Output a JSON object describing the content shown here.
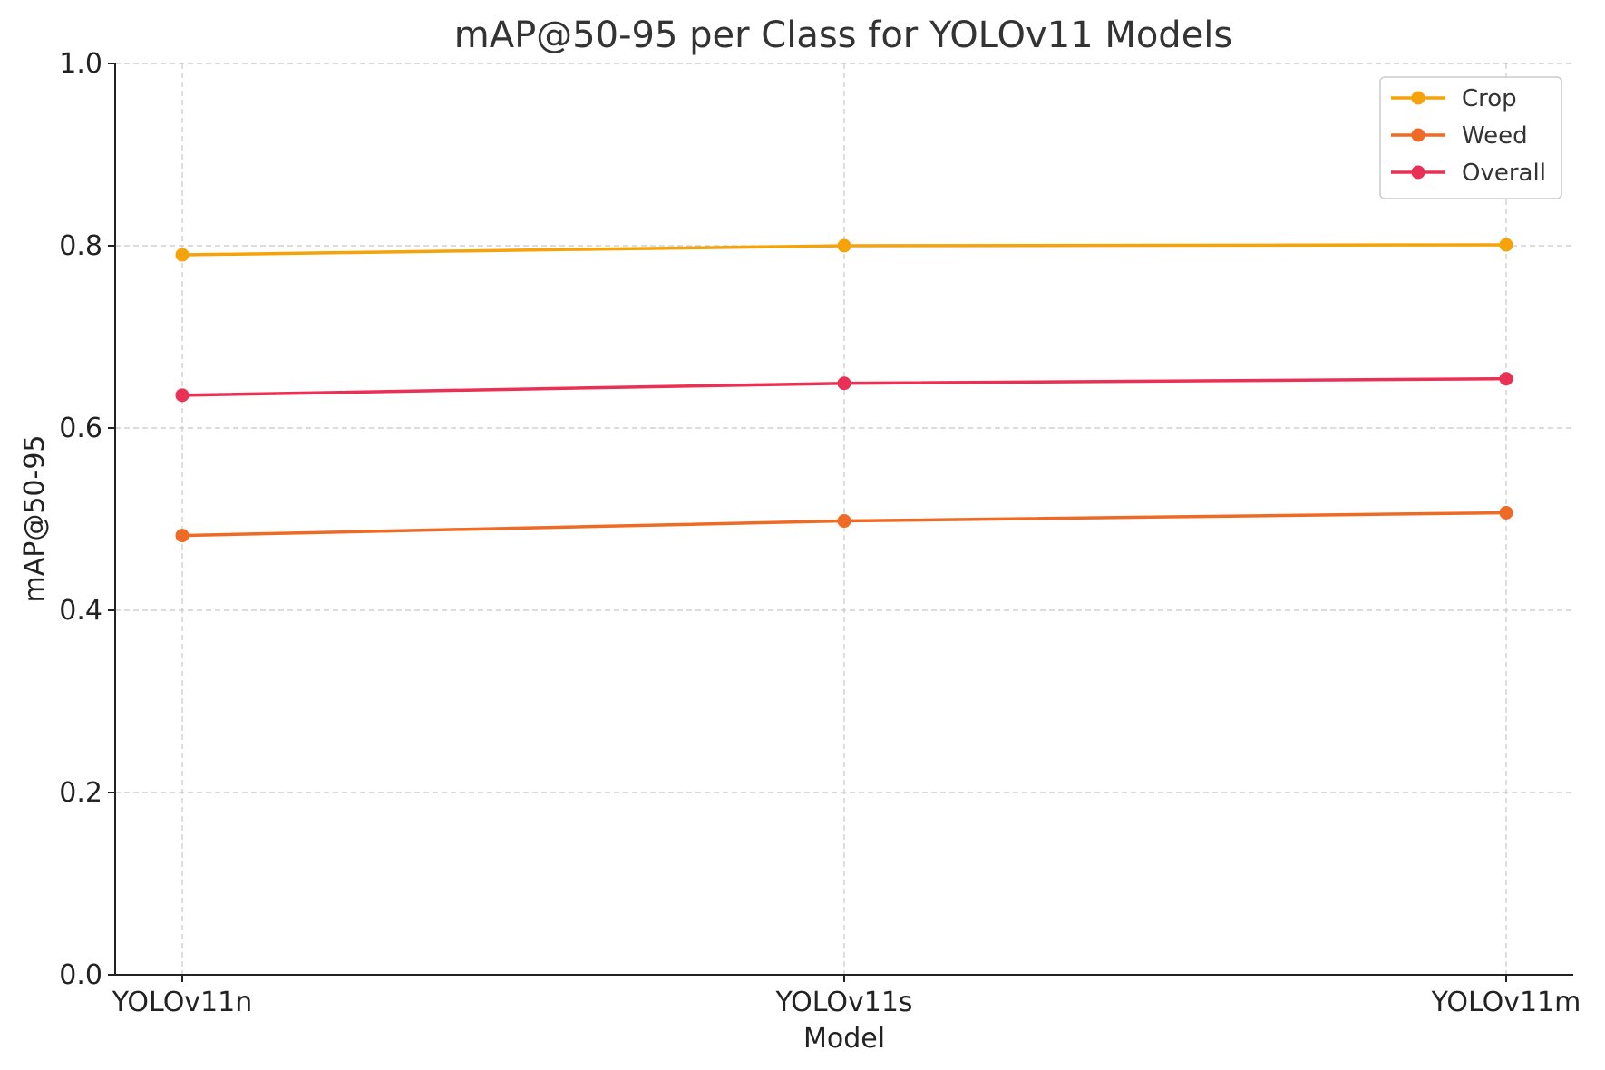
{
  "chart_data": {
    "type": "line",
    "title": "mAP@50-95 per Class for YOLOv11 Models",
    "xlabel": "Model",
    "ylabel": "mAP@50-95",
    "categories": [
      "YOLOv11n",
      "YOLOv11s",
      "YOLOv11m"
    ],
    "ylim": [
      0.0,
      1.0
    ],
    "yticks": [
      "0.0",
      "0.2",
      "0.4",
      "0.6",
      "0.8",
      "1.0"
    ],
    "grid": true,
    "legend_position": "top-right",
    "series": [
      {
        "name": "Crop",
        "color": "#F5A30B",
        "values": [
          0.79,
          0.8,
          0.801
        ]
      },
      {
        "name": "Weed",
        "color": "#EF6A25",
        "values": [
          0.482,
          0.498,
          0.507
        ]
      },
      {
        "name": "Overall",
        "color": "#EA3055",
        "values": [
          0.636,
          0.649,
          0.654
        ]
      }
    ]
  }
}
